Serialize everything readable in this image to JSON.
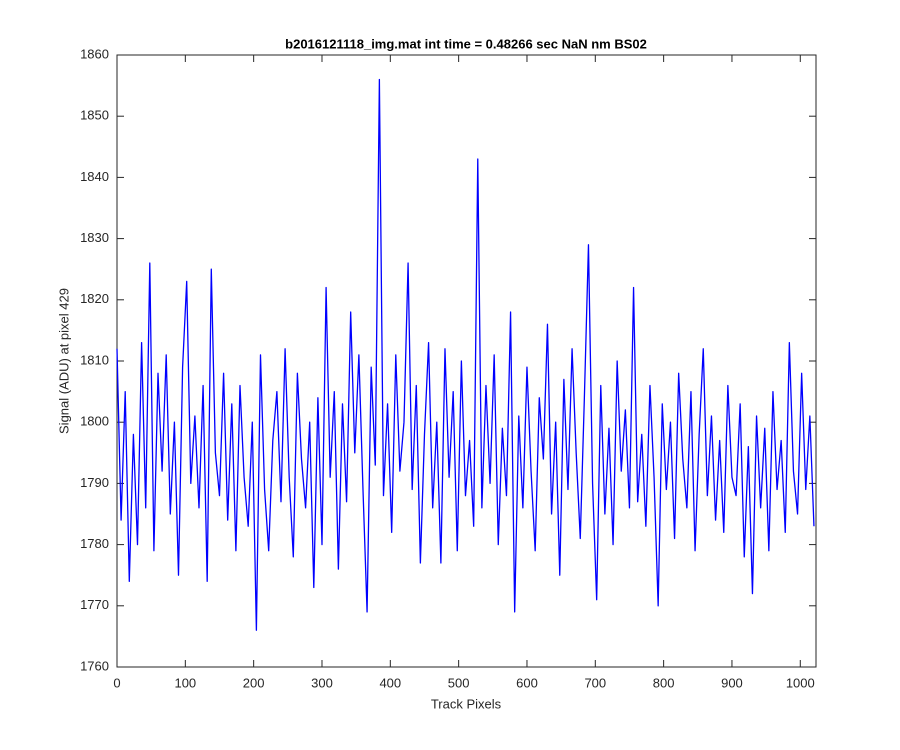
{
  "chart_data": {
    "type": "line",
    "title": "b2016121118_img.mat int time = 0.48266 sec  NaN nm BS02",
    "x_label": "Track Pixels",
    "y_label": "Signal (ADU) at pixel 429",
    "xlim": [
      0,
      1023
    ],
    "ylim": [
      1760,
      1860
    ],
    "xticks": [
      0,
      100,
      200,
      300,
      400,
      500,
      600,
      700,
      800,
      900,
      1000
    ],
    "yticks": [
      1760,
      1770,
      1780,
      1790,
      1800,
      1810,
      1820,
      1830,
      1840,
      1850,
      1860
    ],
    "grid": false,
    "x": [
      0,
      6,
      12,
      18,
      24,
      30,
      36,
      42,
      48,
      54,
      60,
      66,
      72,
      78,
      84,
      90,
      96,
      102,
      108,
      114,
      120,
      126,
      132,
      138,
      144,
      150,
      156,
      162,
      168,
      174,
      180,
      186,
      192,
      198,
      204,
      210,
      216,
      222,
      228,
      234,
      240,
      246,
      252,
      258,
      264,
      270,
      276,
      282,
      288,
      294,
      300,
      306,
      312,
      318,
      324,
      330,
      336,
      342,
      348,
      354,
      360,
      366,
      372,
      378,
      384,
      390,
      396,
      402,
      408,
      414,
      420,
      426,
      432,
      438,
      444,
      450,
      456,
      462,
      468,
      474,
      480,
      486,
      492,
      498,
      504,
      510,
      516,
      522,
      528,
      534,
      540,
      546,
      552,
      558,
      564,
      570,
      576,
      582,
      588,
      594,
      600,
      606,
      612,
      618,
      624,
      630,
      636,
      642,
      648,
      654,
      660,
      666,
      672,
      678,
      684,
      690,
      696,
      702,
      708,
      714,
      720,
      726,
      732,
      738,
      744,
      750,
      756,
      762,
      768,
      774,
      780,
      786,
      792,
      798,
      804,
      810,
      816,
      822,
      828,
      834,
      840,
      846,
      852,
      858,
      864,
      870,
      876,
      882,
      888,
      894,
      900,
      906,
      912,
      918,
      924,
      930,
      936,
      942,
      948,
      954,
      960,
      966,
      972,
      978,
      984,
      990,
      996,
      1002,
      1008,
      1014,
      1020
    ],
    "series": [
      {
        "color": "#0000ff",
        "values": [
          1812,
          1784,
          1805,
          1774,
          1798,
          1780,
          1813,
          1786,
          1826,
          1779,
          1808,
          1792,
          1811,
          1785,
          1800,
          1775,
          1809,
          1823,
          1790,
          1801,
          1786,
          1806,
          1774,
          1825,
          1795,
          1788,
          1808,
          1784,
          1803,
          1779,
          1806,
          1791,
          1783,
          1800,
          1766,
          1811,
          1789,
          1779,
          1797,
          1805,
          1787,
          1812,
          1791,
          1778,
          1808,
          1794,
          1786,
          1800,
          1773,
          1804,
          1780,
          1822,
          1791,
          1805,
          1776,
          1803,
          1787,
          1818,
          1795,
          1811,
          1789,
          1769,
          1809,
          1793,
          1856,
          1788,
          1803,
          1782,
          1811,
          1792,
          1800,
          1826,
          1789,
          1806,
          1777,
          1798,
          1813,
          1786,
          1800,
          1777,
          1812,
          1791,
          1805,
          1779,
          1810,
          1788,
          1797,
          1783,
          1843,
          1786,
          1806,
          1790,
          1811,
          1780,
          1799,
          1788,
          1818,
          1769,
          1801,
          1786,
          1809,
          1792,
          1779,
          1804,
          1794,
          1816,
          1785,
          1800,
          1775,
          1807,
          1789,
          1812,
          1795,
          1781,
          1804,
          1829,
          1790,
          1771,
          1806,
          1785,
          1799,
          1780,
          1810,
          1792,
          1802,
          1786,
          1822,
          1787,
          1798,
          1783,
          1806,
          1791,
          1770,
          1803,
          1789,
          1800,
          1781,
          1808,
          1794,
          1786,
          1805,
          1779,
          1798,
          1812,
          1788,
          1801,
          1784,
          1797,
          1782,
          1806,
          1791,
          1788,
          1803,
          1778,
          1796,
          1772,
          1801,
          1786,
          1799,
          1779,
          1805,
          1789,
          1797,
          1782,
          1813,
          1792,
          1785,
          1808,
          1789,
          1801,
          1783
        ]
      }
    ]
  }
}
